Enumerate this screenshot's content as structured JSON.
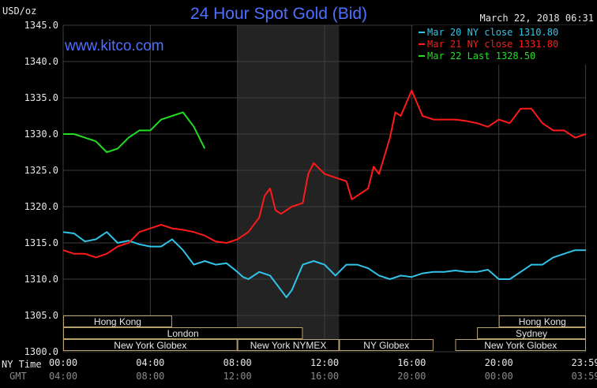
{
  "header": {
    "unit": "USD/oz",
    "title": "24 Hour Spot Gold (Bid)",
    "timestamp": "March 22, 2018 06:31",
    "website": "www.kitco.com"
  },
  "colors": {
    "background": "#000000",
    "grid": "#3c3c3c",
    "night_shade": "#232323",
    "session_band": "#b8a16e",
    "mar20": "#2fc4e8",
    "mar21": "#ff1a1a",
    "mar22": "#22dd22",
    "text": "#e6e6e6",
    "title": "#4f6fff"
  },
  "axis_labels": {
    "ny_time": "NY Time",
    "gmt": "GMT"
  },
  "chart_data": {
    "type": "line",
    "title": "24 Hour Spot Gold (Bid)",
    "ylabel": "USD/oz",
    "ylim": [
      1300,
      1345
    ],
    "yticks": [
      "1300.0",
      "1305.0",
      "1310.0",
      "1315.0",
      "1320.0",
      "1325.0",
      "1330.0",
      "1335.0",
      "1340.0",
      "1345.0"
    ],
    "xlim": [
      0,
      24
    ],
    "x_ticks_ny": [
      "00:00",
      "04:00",
      "08:00",
      "12:00",
      "16:00",
      "20:00",
      "23:59"
    ],
    "x_ticks_gmt": [
      "04:00",
      "08:00",
      "12:00",
      "16:00",
      "20:00",
      "00:00",
      "03:59"
    ],
    "x_tick_hours": [
      0,
      4,
      8,
      12,
      16,
      20,
      23.983
    ],
    "grid": true,
    "legend_position": "top-right",
    "shaded_region": [
      8.0,
      12.67
    ],
    "legend": [
      {
        "label": "Mar 20 NY close 1310.80",
        "series": "mar20"
      },
      {
        "label": "Mar 21 NY close 1331.80",
        "series": "mar21"
      },
      {
        "label": "Mar 22 Last 1328.50",
        "series": "mar22"
      }
    ],
    "series": [
      {
        "name": "Mar 20",
        "color_key": "mar20",
        "x": [
          0,
          0.5,
          1.0,
          1.5,
          2.0,
          2.5,
          3.0,
          3.5,
          4.0,
          4.5,
          5.0,
          5.5,
          6.0,
          6.5,
          7.0,
          7.5,
          8.0,
          8.25,
          8.5,
          9.0,
          9.5,
          10.0,
          10.25,
          10.5,
          11.0,
          11.5,
          12.0,
          12.5,
          13.0,
          13.5,
          14.0,
          14.5,
          15.0,
          15.5,
          16.0,
          16.5,
          17.0,
          17.5,
          18.0,
          18.5,
          19.0,
          19.5,
          20.0,
          20.5,
          21.0,
          21.5,
          22.0,
          22.5,
          23.0,
          23.5,
          24.0
        ],
        "values": [
          1316.5,
          1316.3,
          1315.2,
          1315.5,
          1316.5,
          1315.0,
          1315.3,
          1314.8,
          1314.5,
          1314.5,
          1315.5,
          1314.0,
          1312.0,
          1312.5,
          1312.0,
          1312.2,
          1311.0,
          1310.3,
          1310.0,
          1311.0,
          1310.5,
          1308.5,
          1307.5,
          1308.5,
          1312.0,
          1312.5,
          1312.0,
          1310.5,
          1312.0,
          1312.0,
          1311.5,
          1310.5,
          1310.0,
          1310.5,
          1310.3,
          1310.8,
          1311.0,
          1311.0,
          1311.2,
          1311.0,
          1311.0,
          1311.3,
          1310.0,
          1310.0,
          1311.0,
          1312.0,
          1312.0,
          1313.0,
          1313.5,
          1314.0,
          1314.0
        ]
      },
      {
        "name": "Mar 21",
        "color_key": "mar21",
        "x": [
          0,
          0.5,
          1.0,
          1.5,
          2.0,
          2.5,
          3.0,
          3.5,
          4.0,
          4.5,
          5.0,
          5.5,
          6.0,
          6.5,
          7.0,
          7.5,
          8.0,
          8.5,
          9.0,
          9.25,
          9.5,
          9.75,
          10.0,
          10.5,
          11.0,
          11.25,
          11.5,
          12.0,
          12.5,
          13.0,
          13.25,
          13.5,
          14.0,
          14.25,
          14.5,
          15.0,
          15.25,
          15.5,
          16.0,
          16.5,
          17.0,
          17.5,
          18.0,
          18.5,
          19.0,
          19.5,
          20.0,
          20.5,
          21.0,
          21.5,
          22.0,
          22.5,
          23.0,
          23.5,
          24.0
        ],
        "values": [
          1314.0,
          1313.5,
          1313.5,
          1313.0,
          1313.5,
          1314.5,
          1315.0,
          1316.5,
          1317.0,
          1317.5,
          1317.0,
          1316.8,
          1316.5,
          1316.0,
          1315.2,
          1315.0,
          1315.5,
          1316.5,
          1318.5,
          1321.5,
          1322.5,
          1319.5,
          1319.0,
          1320.0,
          1320.5,
          1324.5,
          1326.0,
          1324.5,
          1324.0,
          1323.5,
          1321.0,
          1321.5,
          1322.5,
          1325.5,
          1324.5,
          1329.5,
          1333.0,
          1332.5,
          1336.0,
          1332.5,
          1332.0,
          1332.0,
          1332.0,
          1331.8,
          1331.5,
          1331.0,
          1332.0,
          1331.5,
          1333.5,
          1333.5,
          1331.5,
          1330.5,
          1330.5,
          1329.5,
          1330.0
        ]
      },
      {
        "name": "Mar 22",
        "color_key": "mar22",
        "x": [
          0,
          0.5,
          1.0,
          1.5,
          2.0,
          2.5,
          3.0,
          3.5,
          4.0,
          4.5,
          5.0,
          5.5,
          6.0,
          6.5
        ],
        "values": [
          1330.0,
          1330.0,
          1329.5,
          1329.0,
          1327.5,
          1328.0,
          1329.5,
          1330.5,
          1330.5,
          1332.0,
          1332.5,
          1333.0,
          1331.0,
          1328.0
        ]
      }
    ],
    "sessions": [
      {
        "label": "Hong Kong",
        "start": 0.0,
        "end": 5.0,
        "row": 0
      },
      {
        "label": "Hong Kong",
        "start": 20.0,
        "end": 24.0,
        "row": 0
      },
      {
        "label": "London",
        "start": 0.0,
        "end": 11.0,
        "row": 1
      },
      {
        "label": "Sydney",
        "start": 19.0,
        "end": 24.0,
        "row": 1
      },
      {
        "label": "New York Globex",
        "start": 0.0,
        "end": 8.0,
        "row": 2
      },
      {
        "label": "New York NYMEX",
        "start": 8.0,
        "end": 12.67,
        "row": 2
      },
      {
        "label": "NY Globex",
        "start": 12.67,
        "end": 17.0,
        "row": 2
      },
      {
        "label": "New York Globex",
        "start": 18.0,
        "end": 24.0,
        "row": 2
      }
    ]
  }
}
